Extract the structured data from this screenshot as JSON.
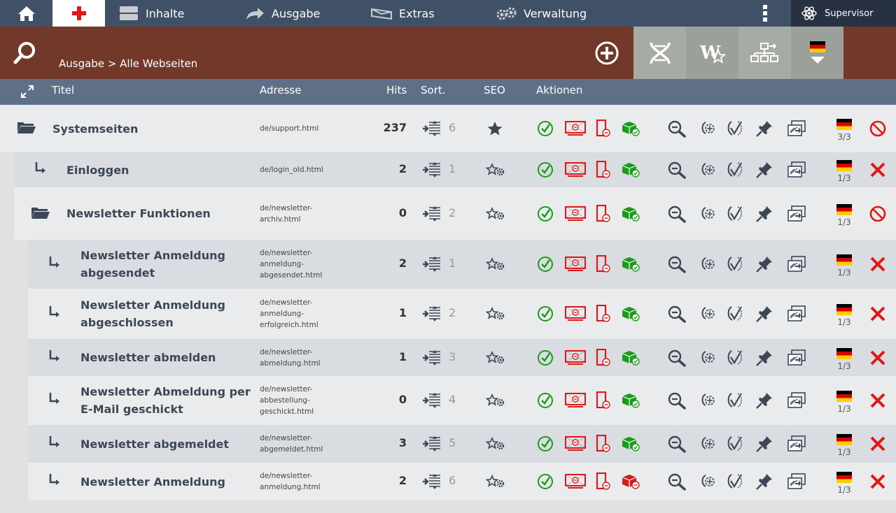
{
  "nav": {
    "inhalte": "Inhalte",
    "ausgabe": "Ausgabe",
    "extras": "Extras",
    "verwaltung": "Verwaltung",
    "user": "Supervisor"
  },
  "header": {
    "breadcrumb": "Ausgabe > Alle Webseiten"
  },
  "columns": {
    "title": "Titel",
    "address": "Adresse",
    "hits": "Hits",
    "sort": "Sort.",
    "seo": "SEO",
    "actions": "Aktionen"
  },
  "rows": [
    {
      "title": "Systemseiten",
      "address": "de/support.html",
      "hits": "237",
      "sort": "6",
      "lang": "3/3",
      "delete_icon": "disabled-icon"
    },
    {
      "title": "Einloggen",
      "address": "de/login_old.html",
      "hits": "2",
      "sort": "1",
      "lang": "1/3",
      "delete_icon": "delete-icon"
    },
    {
      "title": "Newsletter Funktionen",
      "address": "de/newsletter-archiv.html",
      "hits": "0",
      "sort": "2",
      "lang": "1/3",
      "delete_icon": "disabled-icon"
    },
    {
      "title": "Newsletter Anmeldung abgesendet",
      "address": "de/newsletter-anmeldung-abgesendet.html",
      "hits": "2",
      "sort": "1",
      "lang": "1/3",
      "delete_icon": "delete-icon"
    },
    {
      "title": "Newsletter Anmeldung abgeschlossen",
      "address": "de/newsletter-anmeldung-erfolgreich.html",
      "hits": "1",
      "sort": "2",
      "lang": "1/3",
      "delete_icon": "delete-icon"
    },
    {
      "title": "Newsletter abmelden",
      "address": "de/newsletter-abmeldung.html",
      "hits": "1",
      "sort": "3",
      "lang": "1/3",
      "delete_icon": "delete-icon"
    },
    {
      "title": "Newsletter Abmeldung per E-Mail geschickt",
      "address": "de/newsletter-abbestellung-geschickt.html",
      "hits": "0",
      "sort": "4",
      "lang": "1/3",
      "delete_icon": "delete-icon"
    },
    {
      "title": "Newsletter abgemeldet",
      "address": "de/newsletter-abgemeldet.html",
      "hits": "3",
      "sort": "5",
      "lang": "1/3",
      "delete_icon": "delete-icon"
    },
    {
      "title": "Newsletter Anmeldung",
      "address": "de/newsletter-anmeldung.html",
      "hits": "2",
      "sort": "6",
      "lang": "1/3",
      "delete_icon": "delete-icon"
    }
  ]
}
